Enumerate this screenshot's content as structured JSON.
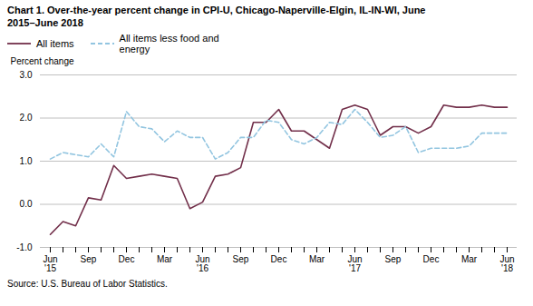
{
  "chart_data": {
    "type": "line",
    "title": "Chart 1. Over-the-year percent change in CPI-U, Chicago-Naperville-Elgin, IL-IN-WI, June\n2015–June 2018",
    "ylabel": "Percent change",
    "source": "Source: U.S. Bureau of Labor Statistics.",
    "categories": [
      "Jun\n'15",
      null,
      null,
      "Sep",
      null,
      null,
      "Dec",
      null,
      null,
      "Mar",
      null,
      null,
      "Jun\n'16",
      null,
      null,
      "Sep",
      null,
      null,
      "Dec",
      null,
      null,
      "Mar",
      null,
      null,
      "Jun\n'17",
      null,
      null,
      "Sep",
      null,
      null,
      "Dec",
      null,
      null,
      "Mar",
      null,
      null,
      "Jun\n'18"
    ],
    "series": [
      {
        "name": "All items",
        "color": "#722F4A",
        "line_style": "solid",
        "values": [
          -0.7,
          -0.4,
          -0.5,
          0.15,
          0.1,
          0.9,
          0.6,
          0.65,
          0.7,
          0.65,
          0.6,
          -0.1,
          0.05,
          0.65,
          0.7,
          0.85,
          1.9,
          1.9,
          2.2,
          1.7,
          1.7,
          1.5,
          1.3,
          2.2,
          2.3,
          2.2,
          1.6,
          1.8,
          1.8,
          1.65,
          1.8,
          2.3,
          2.25,
          2.25,
          2.3,
          2.25,
          2.25
        ]
      },
      {
        "name": "All items less food and\nenergy",
        "color": "#92C5E0",
        "line_style": "dashed",
        "values": [
          1.05,
          1.2,
          1.15,
          1.1,
          1.4,
          1.1,
          2.15,
          1.8,
          1.75,
          1.45,
          1.7,
          1.55,
          1.55,
          1.05,
          1.2,
          1.55,
          1.55,
          1.95,
          1.9,
          1.5,
          1.4,
          1.55,
          1.9,
          1.85,
          2.2,
          1.9,
          1.55,
          1.6,
          1.8,
          1.2,
          1.3,
          1.3,
          1.3,
          1.35,
          1.65,
          1.65,
          1.65
        ]
      }
    ],
    "ylim": [
      -1.0,
      3.0
    ],
    "yticks": [
      {
        "value": -1.0,
        "label": "-1.0"
      },
      {
        "value": 0.0,
        "label": "0.0"
      },
      {
        "value": 1.0,
        "label": "1.0"
      },
      {
        "value": 2.0,
        "label": "2.0"
      },
      {
        "value": 3.0,
        "label": "3.0"
      }
    ],
    "grid": true,
    "legend": "top"
  }
}
